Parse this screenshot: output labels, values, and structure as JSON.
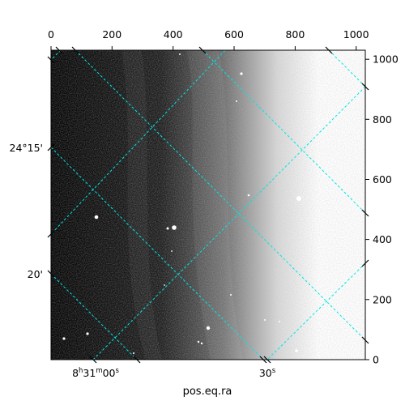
{
  "image": {
    "description_kind": "astronomical greyscale image with WCS grid overlay",
    "colormap": "grayscale",
    "grid_color": "#00e5e5"
  },
  "top_axis": {
    "tick_labels": [
      "0",
      "200",
      "400",
      "600",
      "800",
      "1000"
    ],
    "values": [
      0,
      200,
      400,
      600,
      800,
      1000
    ],
    "range": [
      0,
      1030
    ]
  },
  "right_axis": {
    "tick_labels": [
      "0",
      "200",
      "400",
      "600",
      "800",
      "1000"
    ],
    "values": [
      0,
      200,
      400,
      600,
      800,
      1000
    ],
    "range": [
      0,
      1030
    ]
  },
  "left_axis": {
    "tick_labels": [
      {
        "deg": "24°15'",
        "value": 0.25
      },
      {
        "deg": "20'",
        "value": 0.333
      }
    ]
  },
  "bottom_axis": {
    "title": "pos.eq.ra",
    "tick_labels": [
      {
        "h": "8",
        "m": "31",
        "s": "00",
        "kind": "hms"
      },
      {
        "text": "30",
        "sup": "s",
        "kind": "s"
      }
    ]
  }
}
